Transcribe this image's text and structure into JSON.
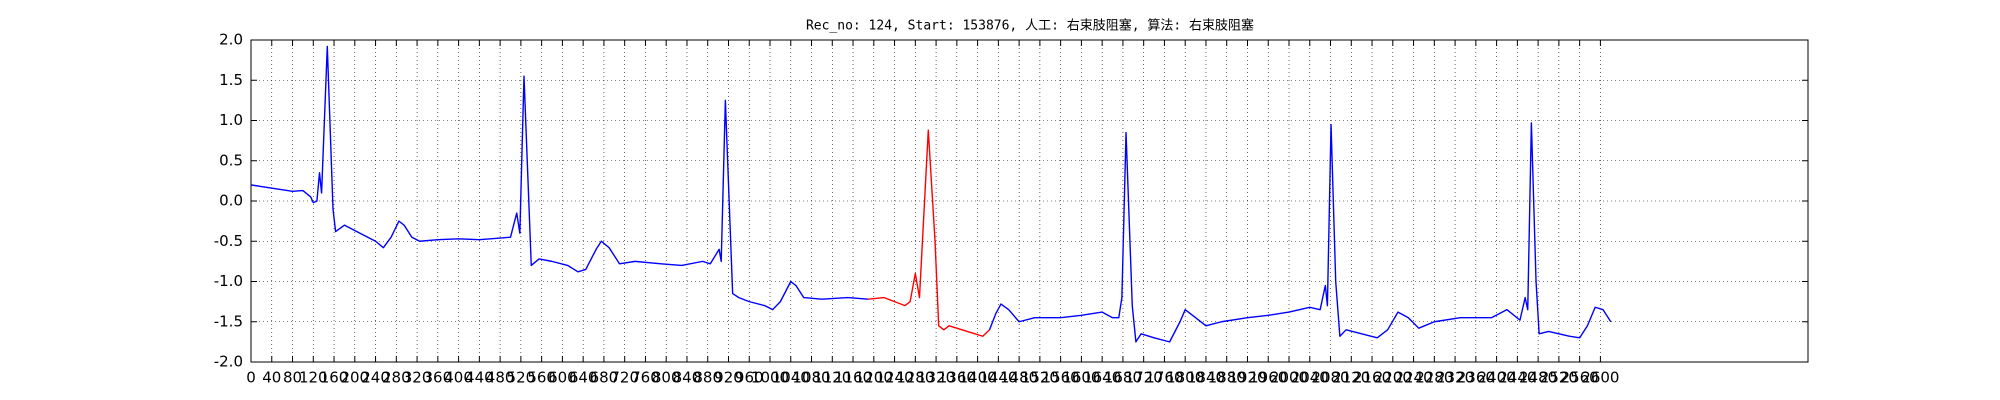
{
  "chart_data": {
    "type": "line",
    "title": "Rec_no: 124, Start: 153876, 人工: 右束肢阻塞, 算法: 右束肢阻塞",
    "xlim": [
      0,
      3000
    ],
    "ylim": [
      -2.0,
      2.0
    ],
    "grid": true,
    "yticks": [
      {
        "value": -2.0,
        "label": "-2.0"
      },
      -1.5,
      {
        "value": -1.0,
        "label": "-1.0"
      },
      -0.5,
      {
        "value": 0.0,
        "label": "0.0"
      },
      0.5,
      {
        "value": 1.0,
        "label": "1.0"
      },
      1.5,
      {
        "value": 2.0,
        "label": "2.0"
      }
    ],
    "xticks": [
      0,
      40,
      80,
      120,
      160,
      200,
      240,
      280,
      320,
      360,
      400,
      440,
      480,
      520,
      560,
      600,
      640,
      680,
      720,
      760,
      800,
      840,
      880,
      920,
      960,
      1000,
      1040,
      1080,
      1120,
      1160,
      1200,
      1240,
      1280,
      1320,
      1360,
      1400,
      1440,
      1480,
      1520,
      1560,
      1600,
      1640,
      1680,
      1720,
      1760,
      1800,
      1840,
      1880,
      1920,
      1960,
      2000,
      2040,
      2080,
      2120,
      2160,
      2200,
      2240,
      2280,
      2320,
      2360,
      2400,
      2440,
      2480,
      2520,
      2560,
      2600
    ],
    "series": [
      {
        "color": "#0000ff",
        "x": [
          0,
          20,
          50,
          80,
          100,
          115,
          120,
          127,
          132,
          136,
          147,
          158,
          163,
          180,
          210,
          240,
          255,
          270,
          285,
          295,
          310,
          325,
          360,
          400,
          440,
          480,
          500,
          512,
          518,
          526,
          540,
          555,
          580,
          610,
          630,
          645,
          665,
          675,
          690,
          710,
          740,
          790,
          830,
          870,
          885,
          902,
          906,
          914,
          928,
          940,
          960,
          990,
          1005,
          1020,
          1040,
          1050,
          1065,
          1100,
          1150,
          1189
        ],
        "values": [
          0.2,
          0.18,
          0.15,
          0.12,
          0.13,
          0.05,
          -0.02,
          0.0,
          0.35,
          0.1,
          1.92,
          -0.1,
          -0.38,
          -0.3,
          -0.4,
          -0.5,
          -0.58,
          -0.45,
          -0.25,
          -0.3,
          -0.45,
          -0.5,
          -0.48,
          -0.47,
          -0.48,
          -0.46,
          -0.45,
          -0.15,
          -0.4,
          1.55,
          -0.8,
          -0.72,
          -0.75,
          -0.8,
          -0.88,
          -0.85,
          -0.6,
          -0.5,
          -0.58,
          -0.78,
          -0.75,
          -0.78,
          -0.8,
          -0.75,
          -0.78,
          -0.6,
          -0.75,
          1.25,
          -1.15,
          -1.2,
          -1.25,
          -1.3,
          -1.35,
          -1.25,
          -1.0,
          -1.05,
          -1.2,
          -1.22,
          -1.2,
          -1.22
        ]
      },
      {
        "color": "#ff0000",
        "x": [
          1189,
          1220,
          1240,
          1260,
          1270,
          1280,
          1288,
          1305,
          1318,
          1325,
          1335,
          1345,
          1370,
          1395,
          1410,
          1423
        ],
        "values": [
          -1.22,
          -1.2,
          -1.25,
          -1.3,
          -1.25,
          -0.9,
          -1.2,
          0.88,
          -0.5,
          -1.55,
          -1.6,
          -1.55,
          -1.6,
          -1.65,
          -1.68,
          -1.6
        ]
      },
      {
        "color": "#0000ff",
        "x": [
          1423,
          1435,
          1445,
          1460,
          1480,
          1510,
          1560,
          1600,
          1640,
          1660,
          1672,
          1678,
          1686,
          1698,
          1705,
          1715,
          1740,
          1770,
          1790,
          1800,
          1820,
          1840,
          1870,
          1920,
          1960,
          2000,
          2040,
          2060,
          2070,
          2074,
          2081,
          2090,
          2098,
          2110,
          2140,
          2170,
          2190,
          2210,
          2230,
          2250,
          2280,
          2330,
          2390,
          2420,
          2445,
          2455,
          2460,
          2467,
          2476,
          2482,
          2500,
          2540,
          2560,
          2575,
          2590,
          2605,
          2620
        ],
        "values": [
          -1.6,
          -1.4,
          -1.28,
          -1.35,
          -1.5,
          -1.45,
          -1.45,
          -1.42,
          -1.38,
          -1.45,
          -1.45,
          -1.2,
          0.85,
          -1.3,
          -1.75,
          -1.65,
          -1.7,
          -1.75,
          -1.5,
          -1.35,
          -1.45,
          -1.55,
          -1.5,
          -1.45,
          -1.42,
          -1.38,
          -1.32,
          -1.35,
          -1.05,
          -1.3,
          0.95,
          -1.0,
          -1.68,
          -1.6,
          -1.65,
          -1.7,
          -1.6,
          -1.38,
          -1.45,
          -1.58,
          -1.5,
          -1.45,
          -1.45,
          -1.35,
          -1.48,
          -1.2,
          -1.35,
          0.97,
          -1.0,
          -1.65,
          -1.62,
          -1.68,
          -1.7,
          -1.55,
          -1.32,
          -1.35,
          -1.5
        ]
      }
    ]
  }
}
